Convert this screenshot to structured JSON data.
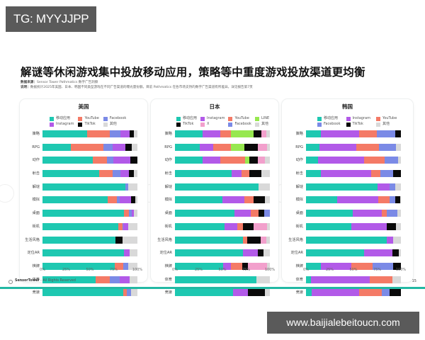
{
  "watermark_top": "TG: MYYJJPP",
  "watermark_bottom": "www.baijialebeitoucn.com",
  "title": "解谜等休闲游戏集中投放移动应用，策略等中重度游戏投放渠道更均衡",
  "meta": {
    "source_label": "数据来源：",
    "source_value": "Sensor Tower Pathmatics 数字广告洞察",
    "note_label": "说明：",
    "note_value": "数据统计2025年美国、日本、韩国不同类型游戏在不同广告渠道的曝光量份额。目前 Pathmatics 在各市场支持的数字广告渠道有所差异，详见报告第7页"
  },
  "footer": {
    "brand": "SensorTower",
    "rights": " - All Rights Reserved",
    "page_number": "15"
  },
  "colors": {
    "移动应用": "#1ec8b1",
    "YouTube": "#f47a66",
    "Facebook": "#7b8ae6",
    "Instagram": "#b25ae8",
    "TikTok": "#0a0a0a",
    "其他": "#d9d9d9",
    "LINE": "#97e84f",
    "X": "#f2a0cc",
    "accent_line": "#22b8a3"
  },
  "chart_data": [
    {
      "type": "bar",
      "orientation": "horizontal",
      "stacked": true,
      "title": "美国",
      "categories": [
        "策略",
        "RPG",
        "动作",
        "射击",
        "解谜",
        "模拟",
        "桌面",
        "街机",
        "生活风格",
        "定位AR",
        "棋牌",
        "体育",
        "竞速"
      ],
      "legend": [
        "移动应用",
        "YouTube",
        "Facebook",
        "Instagram",
        "TikTok",
        "其他"
      ],
      "series": [
        {
          "name": "移动应用",
          "values": [
            47,
            30,
            57,
            60,
            87,
            69,
            86,
            80,
            77,
            86,
            76,
            56,
            85
          ]
        },
        {
          "name": "YouTube",
          "values": [
            24,
            34,
            16,
            14,
            0,
            9,
            5,
            4,
            0,
            0,
            9,
            15,
            4
          ]
        },
        {
          "name": "Facebook",
          "values": [
            11,
            10,
            7,
            8,
            3,
            3,
            3,
            1,
            0,
            0,
            5,
            10,
            4
          ]
        },
        {
          "name": "Instagram",
          "values": [
            10,
            13,
            19,
            9,
            0,
            12,
            2,
            5,
            0,
            6,
            0,
            11,
            0
          ]
        },
        {
          "name": "TikTok",
          "values": [
            4,
            7,
            8,
            5,
            0,
            5,
            0,
            0,
            7,
            0,
            0,
            0,
            0
          ]
        },
        {
          "name": "其他",
          "values": [
            4,
            6,
            0,
            4,
            10,
            2,
            4,
            10,
            16,
            8,
            10,
            8,
            7
          ]
        }
      ],
      "xlim": [
        0,
        100
      ],
      "xticks": [
        "0%",
        "25%",
        "50%",
        "75%",
        "100%"
      ],
      "legend_position": "top"
    },
    {
      "type": "bar",
      "orientation": "horizontal",
      "stacked": true,
      "title": "日本",
      "categories": [
        "策略",
        "RPG",
        "动作",
        "射击",
        "解谜",
        "模拟",
        "桌面",
        "街机",
        "生活风格",
        "定位AR",
        "棋牌",
        "体育",
        "竞速"
      ],
      "legend": [
        "移动应用",
        "Instagram",
        "YouTube",
        "LINE",
        "TikTok",
        "X",
        "Facebook",
        "其他"
      ],
      "series": [
        {
          "name": "移动应用",
          "values": [
            29,
            26,
            29,
            60,
            88,
            50,
            63,
            52,
            72,
            72,
            51,
            86,
            61
          ]
        },
        {
          "name": "Instagram",
          "values": [
            19,
            14,
            19,
            10,
            0,
            23,
            17,
            14,
            0,
            15,
            8,
            0,
            16
          ]
        },
        {
          "name": "YouTube",
          "values": [
            11,
            19,
            26,
            8,
            0,
            10,
            8,
            6,
            4,
            0,
            12,
            0,
            0
          ]
        },
        {
          "name": "LINE",
          "values": [
            24,
            14,
            4,
            0,
            0,
            0,
            0,
            0,
            0,
            0,
            0,
            0,
            0
          ]
        },
        {
          "name": "TikTok",
          "values": [
            8,
            14,
            9,
            13,
            0,
            12,
            6,
            11,
            14,
            6,
            6,
            0,
            18
          ]
        },
        {
          "name": "X",
          "values": [
            5,
            10,
            8,
            0,
            0,
            0,
            0,
            14,
            6,
            0,
            20,
            0,
            0
          ]
        },
        {
          "name": "Facebook",
          "values": [
            0,
            0,
            0,
            0,
            0,
            0,
            6,
            0,
            0,
            0,
            0,
            0,
            0
          ]
        },
        {
          "name": "其他",
          "values": [
            4,
            3,
            5,
            9,
            12,
            5,
            0,
            3,
            4,
            7,
            3,
            14,
            5
          ]
        }
      ],
      "xlim": [
        0,
        100
      ],
      "xticks": [
        "0%",
        "25%",
        "50%",
        "75%",
        "100%"
      ],
      "legend_position": "top"
    },
    {
      "type": "bar",
      "orientation": "horizontal",
      "stacked": true,
      "title": "韩国",
      "categories": [
        "策略",
        "RPG",
        "动作",
        "射击",
        "解谜",
        "模拟",
        "桌面",
        "街机",
        "生活风格",
        "定位AR",
        "棋牌",
        "体育",
        "竞速"
      ],
      "legend": [
        "移动应用",
        "Instagram",
        "YouTube",
        "Facebook",
        "TikTok",
        "其他"
      ],
      "series": [
        {
          "name": "移动应用",
          "values": [
            16,
            14,
            13,
            16,
            75,
            33,
            49,
            48,
            85,
            61,
            16,
            5,
            6
          ]
        },
        {
          "name": "Instagram",
          "values": [
            40,
            39,
            48,
            53,
            13,
            43,
            31,
            37,
            7,
            30,
            32,
            62,
            50
          ]
        },
        {
          "name": "YouTube",
          "values": [
            19,
            24,
            22,
            9,
            0,
            12,
            5,
            0,
            0,
            0,
            22,
            24,
            24
          ]
        },
        {
          "name": "Facebook",
          "values": [
            19,
            18,
            14,
            14,
            6,
            6,
            11,
            0,
            0,
            0,
            22,
            0,
            8
          ]
        },
        {
          "name": "TikTok",
          "values": [
            6,
            0,
            0,
            8,
            0,
            5,
            0,
            10,
            0,
            7,
            8,
            0,
            12
          ]
        },
        {
          "name": "其他",
          "values": [
            0,
            5,
            3,
            0,
            6,
            1,
            4,
            5,
            8,
            2,
            0,
            9,
            0
          ]
        }
      ],
      "xlim": [
        0,
        100
      ],
      "xticks": [
        "0%",
        "25%",
        "50%",
        "75%",
        "100%"
      ],
      "legend_position": "top"
    }
  ]
}
